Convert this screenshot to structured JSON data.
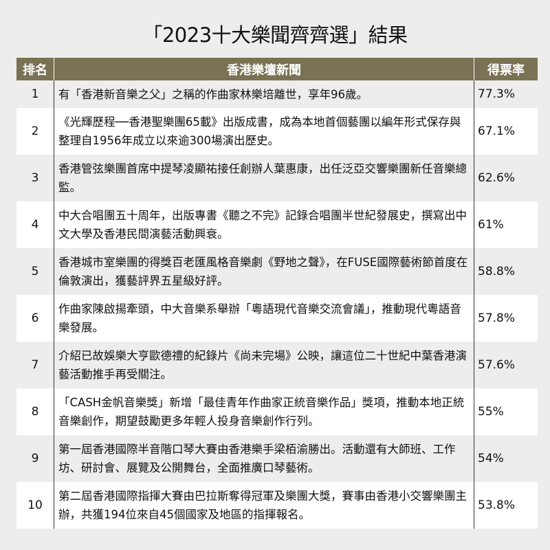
{
  "title": "「2023十大樂聞齊齊選」結果",
  "colors": {
    "header_bg": "#7a7254",
    "header_text": "#ffffff",
    "row_alt": "#ffffff",
    "row_base": "#ededed"
  },
  "table": {
    "headers": [
      "排名",
      "香港樂壇新聞",
      "得票率"
    ],
    "rows": [
      {
        "rank": "1",
        "news": "有「香港新音樂之父」之稱的作曲家林樂培離世，享年96歲。",
        "percent": "77.3%"
      },
      {
        "rank": "2",
        "news": "《光輝歷程──香港聖樂團65載》出版成書，成為本地首個藝團以編年形式保存與整理自1956年成立以來逾300場演出歷史。",
        "percent": "67.1%"
      },
      {
        "rank": "3",
        "news": "香港管弦樂團首席中提琴凌顯祐接任創辦人葉惠康，出任泛亞交響樂團新任音樂總監。",
        "percent": "62.6%"
      },
      {
        "rank": "4",
        "news": "中大合唱團五十周年，出版專書《聽之不完》記錄合唱團半世紀發展史，撰寫出中文大學及香港民間演藝活動興衰。",
        "percent": "61%"
      },
      {
        "rank": "5",
        "news": "香港城市室樂團的得獎百老匯風格音樂劇《野地之聲》，在FUSE國際藝術節首度在倫敦演出，獲藝評界五星級好評。",
        "percent": "58.8%"
      },
      {
        "rank": "6",
        "news": "作曲家陳啟揚牽頭，中大音樂系舉辦「粵語現代音樂交流會議」，推動現代粵語音樂發展。",
        "percent": "57.8%"
      },
      {
        "rank": "7",
        "news": "介紹已故娛樂大亨歐德禮的紀錄片《尚未完場》公映，讓這位二十世紀中葉香港演藝活動推手再受關注。",
        "percent": "57.6%"
      },
      {
        "rank": "8",
        "news": "「CASH金帆音樂獎」新增「最佳青年作曲家正統音樂作品」獎項，推動本地正統音樂創作，期望鼓勵更多年輕人投身音樂創作行列。",
        "percent": "55%"
      },
      {
        "rank": "9",
        "news": "第一屆香港國際半音階口琴大賽由香港樂手梁栢渝勝出。活動還有大師班、工作坊、研討會、展覽及公開舞台，全面推廣口琴藝術。",
        "percent": "54%"
      },
      {
        "rank": "10",
        "news": "第二屆香港國際指揮大賽由巴拉斯奪得冠軍及樂團大獎，賽事由香港小交響樂團主辦，共獲194位來自45個國家及地區的指揮報名。",
        "percent": "53.8%"
      }
    ]
  }
}
